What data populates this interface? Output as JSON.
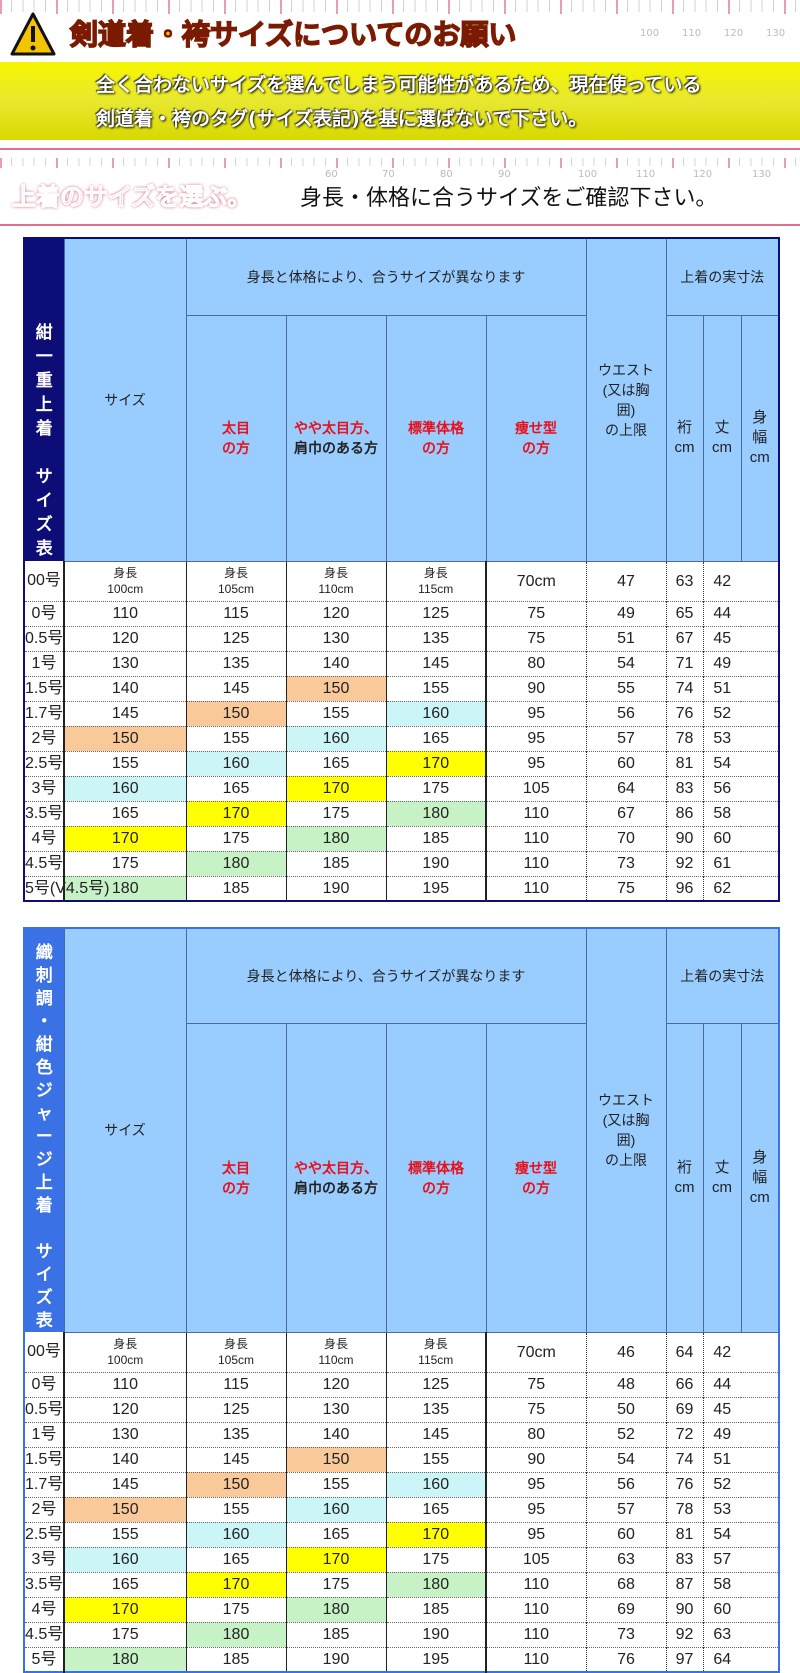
{
  "notice": {
    "title": "剣道着・袴サイズについてのお願い",
    "line1": "全く合わないサイズを選んでしまう可能性があるため、現在使っている",
    "line2": "剣道着・袴のタグ(サイズ表記)を基に選ばないで下さい。",
    "icon": "warning-triangle-icon"
  },
  "ruler_ticks": [
    "100",
    "110",
    "120",
    "130"
  ],
  "ruler_ticks2": [
    "60",
    "70",
    "80",
    "90",
    "100",
    "110",
    "120",
    "130"
  ],
  "section": {
    "title": "上着のサイズを選ぶ。",
    "subtitle": "身長・体格に合うサイズをご確認下さい。"
  },
  "headers": {
    "size": "サイズ",
    "group": "身長と体格により、合うサイズが異なります",
    "body_types": [
      [
        "太目",
        "の方"
      ],
      [
        "やや太目方、",
        "肩巾のある方"
      ],
      [
        "標準体格",
        "の方"
      ],
      [
        "痩せ型",
        "の方"
      ]
    ],
    "waist": [
      "ウエスト",
      "(又は胸",
      "囲)",
      "の上限"
    ],
    "measure_group": "上着の実寸法",
    "measures": [
      [
        "裄",
        "cm"
      ],
      [
        "丈",
        "cm"
      ],
      [
        "身",
        "幅",
        "cm"
      ]
    ]
  },
  "first_row_label": "身長",
  "highlight_colors": {
    "150": "#fac99a",
    "160": "#ccf5f8",
    "170": "#ffff00",
    "180": "#c6f2c6"
  },
  "tables": [
    {
      "side_label": [
        "紺",
        "一",
        "重",
        "上",
        "着",
        "",
        "サ",
        "イ",
        "ズ",
        "表"
      ],
      "rows": [
        [
          "00号",
          "100cm",
          "105cm",
          "110cm",
          "115cm",
          "70cm",
          "47",
          "63",
          "42"
        ],
        [
          "0号",
          "110",
          "115",
          "120",
          "125",
          "75",
          "49",
          "65",
          "44"
        ],
        [
          "0.5号",
          "120",
          "125",
          "130",
          "135",
          "75",
          "51",
          "67",
          "45"
        ],
        [
          "1号",
          "130",
          "135",
          "140",
          "145",
          "80",
          "54",
          "71",
          "49"
        ],
        [
          "1.5号",
          "140",
          "145",
          "150",
          "155",
          "90",
          "55",
          "74",
          "51"
        ],
        [
          "1.7号",
          "145",
          "150",
          "155",
          "160",
          "95",
          "56",
          "76",
          "52"
        ],
        [
          "2号",
          "150",
          "155",
          "160",
          "165",
          "95",
          "57",
          "78",
          "53"
        ],
        [
          "2.5号",
          "155",
          "160",
          "165",
          "170",
          "95",
          "60",
          "81",
          "54"
        ],
        [
          "3号",
          "160",
          "165",
          "170",
          "175",
          "105",
          "64",
          "83",
          "56"
        ],
        [
          "3.5号",
          "165",
          "170",
          "175",
          "180",
          "110",
          "67",
          "86",
          "58"
        ],
        [
          "4号",
          "170",
          "175",
          "180",
          "185",
          "110",
          "70",
          "90",
          "60"
        ],
        [
          "4.5号",
          "175",
          "180",
          "185",
          "190",
          "110",
          "73",
          "92",
          "61"
        ],
        [
          "5号(V4.5号)",
          "180",
          "185",
          "190",
          "195",
          "110",
          "75",
          "96",
          "62"
        ]
      ]
    },
    {
      "side_label": [
        "織",
        "刺",
        "調",
        "・",
        "紺",
        "色",
        "ジ",
        "ャ",
        "ー",
        "ジ",
        "上",
        "着",
        "",
        "サ",
        "イ",
        "ズ",
        "表"
      ],
      "rows": [
        [
          "00号",
          "100cm",
          "105cm",
          "110cm",
          "115cm",
          "70cm",
          "46",
          "64",
          "42"
        ],
        [
          "0号",
          "110",
          "115",
          "120",
          "125",
          "75",
          "48",
          "66",
          "44"
        ],
        [
          "0.5号",
          "120",
          "125",
          "130",
          "135",
          "75",
          "50",
          "69",
          "45"
        ],
        [
          "1号",
          "130",
          "135",
          "140",
          "145",
          "80",
          "52",
          "72",
          "49"
        ],
        [
          "1.5号",
          "140",
          "145",
          "150",
          "155",
          "90",
          "54",
          "74",
          "51"
        ],
        [
          "1.7号",
          "145",
          "150",
          "155",
          "160",
          "95",
          "56",
          "76",
          "52"
        ],
        [
          "2号",
          "150",
          "155",
          "160",
          "165",
          "95",
          "57",
          "78",
          "53"
        ],
        [
          "2.5号",
          "155",
          "160",
          "165",
          "170",
          "95",
          "60",
          "81",
          "54"
        ],
        [
          "3号",
          "160",
          "165",
          "170",
          "175",
          "105",
          "63",
          "83",
          "57"
        ],
        [
          "3.5号",
          "165",
          "170",
          "175",
          "180",
          "110",
          "68",
          "87",
          "58"
        ],
        [
          "4号",
          "170",
          "175",
          "180",
          "185",
          "110",
          "69",
          "90",
          "60"
        ],
        [
          "4.5号",
          "175",
          "180",
          "185",
          "190",
          "110",
          "73",
          "92",
          "63"
        ],
        [
          "5号",
          "180",
          "185",
          "190",
          "195",
          "110",
          "76",
          "97",
          "64"
        ]
      ]
    }
  ]
}
